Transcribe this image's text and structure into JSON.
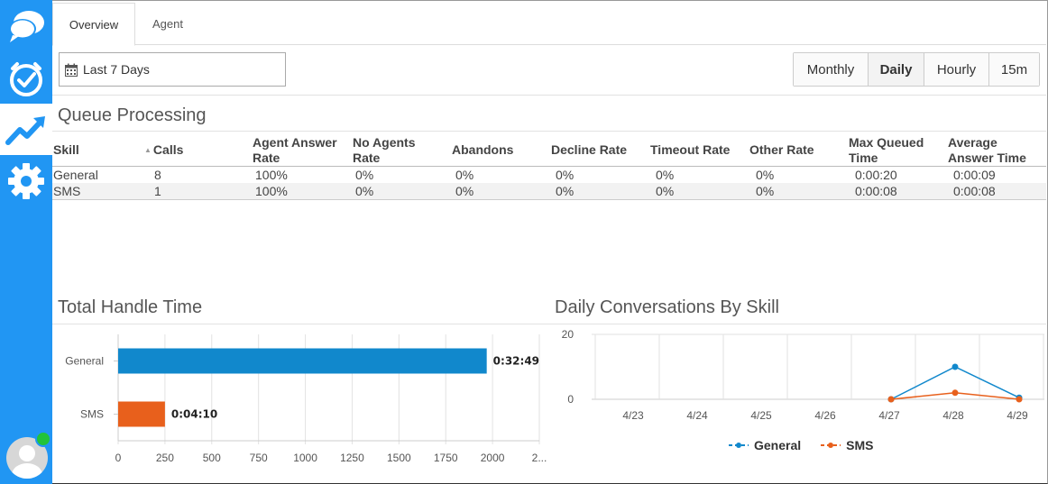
{
  "sidebar": {
    "items": [
      {
        "icon": "chat-bubbles-icon",
        "active": false
      },
      {
        "icon": "clock-check-icon",
        "active": false
      },
      {
        "icon": "trending-chart-icon",
        "active": true
      },
      {
        "icon": "gear-icon",
        "active": false
      }
    ],
    "user_status_color": "#22c33a"
  },
  "tabs": [
    {
      "label": "Overview",
      "active": true
    },
    {
      "label": "Agent",
      "active": false
    }
  ],
  "date_range": {
    "label": "Last 7 Days",
    "icon": "calendar-icon"
  },
  "granularity": {
    "options": [
      "Monthly",
      "Daily",
      "Hourly",
      "15m"
    ],
    "selected": "Daily"
  },
  "queue": {
    "title": "Queue Processing",
    "columns": {
      "skill": "Skill",
      "calls": "Calls",
      "agent_answer_rate": "Agent Answer Rate",
      "no_agents_rate": "No Agents Rate",
      "abandons": "Abandons",
      "decline_rate": "Decline Rate",
      "timeout_rate": "Timeout Rate",
      "other_rate": "Other Rate",
      "max_queued_time": "Max Queued Time",
      "average_answer_time": "Average Answer Time"
    },
    "rows": [
      {
        "skill": "General",
        "calls": "8",
        "agent_answer_rate": "100%",
        "no_agents_rate": "0%",
        "abandons": "0%",
        "decline_rate": "0%",
        "timeout_rate": "0%",
        "other_rate": "0%",
        "max_queued_time": "0:00:20",
        "average_answer_time": "0:00:09"
      },
      {
        "skill": "SMS",
        "calls": "1",
        "agent_answer_rate": "100%",
        "no_agents_rate": "0%",
        "abandons": "0%",
        "decline_rate": "0%",
        "timeout_rate": "0%",
        "other_rate": "0%",
        "max_queued_time": "0:00:08",
        "average_answer_time": "0:00:08"
      }
    ]
  },
  "handle_time": {
    "title": "Total Handle Time"
  },
  "conversations": {
    "title": "Daily Conversations By Skill"
  },
  "chart_data": [
    {
      "type": "bar",
      "orientation": "horizontal",
      "title": "Total Handle Time",
      "categories": [
        "General",
        "SMS"
      ],
      "values": [
        1969,
        250
      ],
      "data_labels": [
        "0:32:49",
        "0:04:10"
      ],
      "colors": [
        "#1188cc",
        "#e8601c"
      ],
      "xlim": [
        0,
        2250
      ],
      "x_ticks": [
        "0",
        "250",
        "500",
        "750",
        "1000",
        "1250",
        "1500",
        "1750",
        "2000",
        "2..."
      ],
      "grid": true
    },
    {
      "type": "line",
      "title": "Daily Conversations By Skill",
      "x": [
        "4/23",
        "4/24",
        "4/25",
        "4/26",
        "4/27",
        "4/28",
        "4/29"
      ],
      "ylim": [
        0,
        20
      ],
      "y_ticks": [
        "0",
        "20"
      ],
      "grid": true,
      "legend_position": "bottom",
      "series": [
        {
          "name": "General",
          "color": "#1188cc",
          "points": [
            {
              "x": "4/27",
              "y": 0
            },
            {
              "x": "4/28",
              "y": 10
            },
            {
              "x": "4/29",
              "y": 0.5
            }
          ]
        },
        {
          "name": "SMS",
          "color": "#e8601c",
          "points": [
            {
              "x": "4/27",
              "y": 0
            },
            {
              "x": "4/28",
              "y": 2
            },
            {
              "x": "4/29",
              "y": 0
            }
          ]
        }
      ]
    }
  ]
}
